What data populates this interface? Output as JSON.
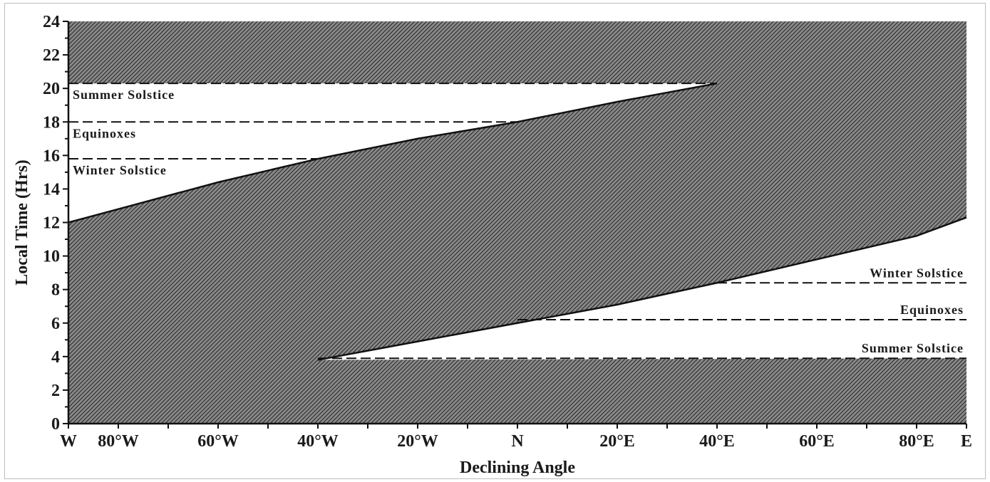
{
  "chart_data": {
    "type": "area",
    "title": "",
    "xlabel": "Declining Angle",
    "ylabel": "Local Time (Hrs)",
    "xlim": [
      -90,
      90
    ],
    "ylim": [
      0,
      24
    ],
    "x_ticks": [
      {
        "value": -90,
        "label": "W"
      },
      {
        "value": -80,
        "label": "80°W"
      },
      {
        "value": -60,
        "label": "60°W"
      },
      {
        "value": -40,
        "label": "40°W"
      },
      {
        "value": -20,
        "label": "20°W"
      },
      {
        "value": 0,
        "label": "N"
      },
      {
        "value": 20,
        "label": "20°E"
      },
      {
        "value": 40,
        "label": "40°E"
      },
      {
        "value": 60,
        "label": "60°E"
      },
      {
        "value": 80,
        "label": "80°E"
      },
      {
        "value": 90,
        "label": "E"
      }
    ],
    "y_ticks": [
      {
        "value": 0,
        "label": "0"
      },
      {
        "value": 2,
        "label": "2"
      },
      {
        "value": 4,
        "label": "4"
      },
      {
        "value": 6,
        "label": "6"
      },
      {
        "value": 8,
        "label": "8"
      },
      {
        "value": 10,
        "label": "10"
      },
      {
        "value": 12,
        "label": "12"
      },
      {
        "value": 14,
        "label": "14"
      },
      {
        "value": 16,
        "label": "16"
      },
      {
        "value": 18,
        "label": "18"
      },
      {
        "value": 20,
        "label": "20"
      },
      {
        "value": 22,
        "label": "22"
      },
      {
        "value": 24,
        "label": "24"
      }
    ],
    "boundary_curves": [
      {
        "x": [
          -90,
          -80,
          -60,
          -40,
          -20,
          0,
          20,
          40
        ],
        "y": [
          12.0,
          12.8,
          14.4,
          15.8,
          17.0,
          18.0,
          19.2,
          20.3
        ]
      },
      {
        "x": [
          -40,
          -20,
          0,
          20,
          40,
          60,
          80,
          90
        ],
        "y": [
          3.8,
          4.9,
          6.0,
          7.1,
          8.4,
          9.8,
          11.2,
          12.3
        ]
      }
    ],
    "reference_lines": [
      {
        "label": "Summer Solstice",
        "y": 20.3,
        "x_from": -90,
        "x_to": 40
      },
      {
        "label": "Equinoxes",
        "y": 18.0,
        "x_from": -90,
        "x_to": 0
      },
      {
        "label": "Winter Solstice",
        "y": 15.8,
        "x_from": -90,
        "x_to": -40
      },
      {
        "label": "Winter Solstice",
        "y": 8.4,
        "x_from": 40,
        "x_to": 90
      },
      {
        "label": "Equinoxes",
        "y": 6.2,
        "x_from": 0,
        "x_to": 90
      },
      {
        "label": "Summer Solstice",
        "y": 3.9,
        "x_from": -40,
        "x_to": 90
      }
    ],
    "colors": {
      "shade": "#6e6e6e",
      "hatch": "#2a2a2a",
      "clear": "#ffffff",
      "line": "#111111"
    },
    "grid": false,
    "legend": "none"
  }
}
